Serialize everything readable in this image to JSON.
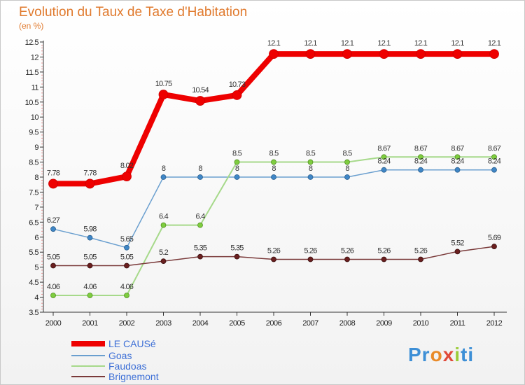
{
  "title": "Evolution du Taux de Taxe d'Habitation",
  "unit_label": "(en %)",
  "brand": {
    "parts": [
      "Pr",
      "o",
      "x",
      "i",
      "ti"
    ],
    "colors": [
      "#3d8fd6",
      "#e98a28",
      "#e04a3a",
      "#9bcc3a",
      "#3d8fd6"
    ]
  },
  "chart_data": {
    "type": "line",
    "title": "Evolution du Taux de Taxe d'Habitation",
    "ylabel": "(en %)",
    "x": [
      2000,
      2001,
      2002,
      2003,
      2004,
      2005,
      2006,
      2007,
      2008,
      2009,
      2010,
      2011,
      2012
    ],
    "ylim": [
      3.5,
      12.5
    ],
    "yticks": [
      3.5,
      4,
      4.5,
      5,
      5.5,
      6,
      6.5,
      7,
      7.5,
      8,
      8.5,
      9,
      9.5,
      10,
      10.5,
      11,
      11.5,
      12,
      12.5
    ],
    "grid": false,
    "legend_position": "bottom-left",
    "series": [
      {
        "name": "LE CAUSé",
        "color": "#ee0000",
        "values": [
          7.78,
          7.78,
          8.02,
          10.75,
          10.54,
          10.73,
          12.1,
          12.1,
          12.1,
          12.1,
          12.1,
          12.1,
          12.1
        ],
        "labels": [
          "7.78",
          "7.78",
          "8.02",
          "10.75",
          "10.54",
          "10.73",
          "12.1",
          "12.1",
          "12.1",
          "12.1",
          "12.1",
          "12.1",
          "12.1"
        ]
      },
      {
        "name": "Goas",
        "color": "#6a9fcf",
        "values": [
          6.27,
          5.98,
          5.65,
          8,
          8,
          8,
          8,
          8,
          8,
          8.24,
          8.24,
          8.24,
          8.24
        ],
        "labels": [
          "6.27",
          "5.98",
          "5.65",
          "8",
          "8",
          "8",
          "8",
          "8",
          "8",
          "8.24",
          "8.24",
          "8.24",
          "8.24"
        ]
      },
      {
        "name": "Faudoas",
        "color": "#a6d98a",
        "values": [
          4.06,
          4.06,
          4.06,
          6.4,
          6.4,
          8.5,
          8.5,
          8.5,
          8.5,
          8.67,
          8.67,
          8.67,
          8.67
        ],
        "labels": [
          "4.06",
          "4.06",
          "4.06",
          "6.4",
          "6.4",
          "8.5",
          "8.5",
          "8.5",
          "8.5",
          "8.67",
          "8.67",
          "8.67",
          "8.67"
        ]
      },
      {
        "name": "Brignemont",
        "color": "#7a3a3a",
        "values": [
          5.05,
          5.05,
          5.05,
          5.2,
          5.35,
          5.35,
          5.26,
          5.26,
          5.26,
          5.26,
          5.26,
          5.52,
          5.69
        ],
        "labels": [
          "5.05",
          "5.05",
          "5.05",
          "5.2",
          "5.35",
          "5.35",
          "5.26",
          "5.26",
          "5.26",
          "5.26",
          "5.26",
          "5.52",
          "5.69"
        ]
      }
    ]
  }
}
